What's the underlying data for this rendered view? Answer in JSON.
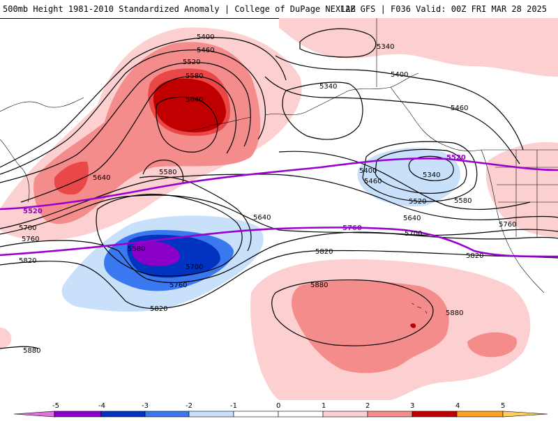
{
  "header": {
    "title_left": "500mb Height 1981-2010 Standardized Anomaly | College of DuPage NEXLAB",
    "title_right": "12Z GFS | F036 Valid: 00Z FRI MAR 28 2025"
  },
  "colors": {
    "neg5": "#e070e0",
    "neg4": "#8a00c8",
    "neg3": "#0033c0",
    "neg2": "#3a78f0",
    "neg1": "#c8e0fa",
    "pos1": "#fcd0d0",
    "pos2": "#f48c8c",
    "pos3": "#e84848",
    "pos4": "#c00000",
    "pos5": "#ffa020",
    "highlight_contour": "#9a00d0"
  },
  "contour_labels": {
    "c5400a": "5400",
    "c5460a": "5460",
    "c5520a": "5520",
    "c5580a": "5580",
    "c5640a": "5640",
    "c5340a": "5340",
    "c5340b": "5340",
    "c5400b": "5400",
    "c5460b": "5460",
    "c5520hl": "5520",
    "c5400c": "5400",
    "c5460c": "5460",
    "c5340c": "5340",
    "c5520b": "5520",
    "c5580b": "5580",
    "c5640b": "5640",
    "c5700b": "5700",
    "c5760b": "5760",
    "c5640c": "5640",
    "c5580c": "5580",
    "c5520w": "5520",
    "c5700w": "5700",
    "c5760w": "5760",
    "c5820w": "5820",
    "c5640d": "5640",
    "c5760hl": "5760",
    "c5580d": "5580",
    "c5700d": "5700",
    "c5760d": "5760",
    "c5820d": "5820",
    "c5820e": "5820",
    "c5880a": "5880",
    "c5880b": "5880",
    "c5820f": "5820",
    "c5880w": "5880"
  },
  "colorbar": {
    "labels": [
      "-5",
      "-4",
      "-3",
      "-2",
      "-1",
      "0",
      "1",
      "2",
      "3",
      "4",
      "5"
    ]
  }
}
